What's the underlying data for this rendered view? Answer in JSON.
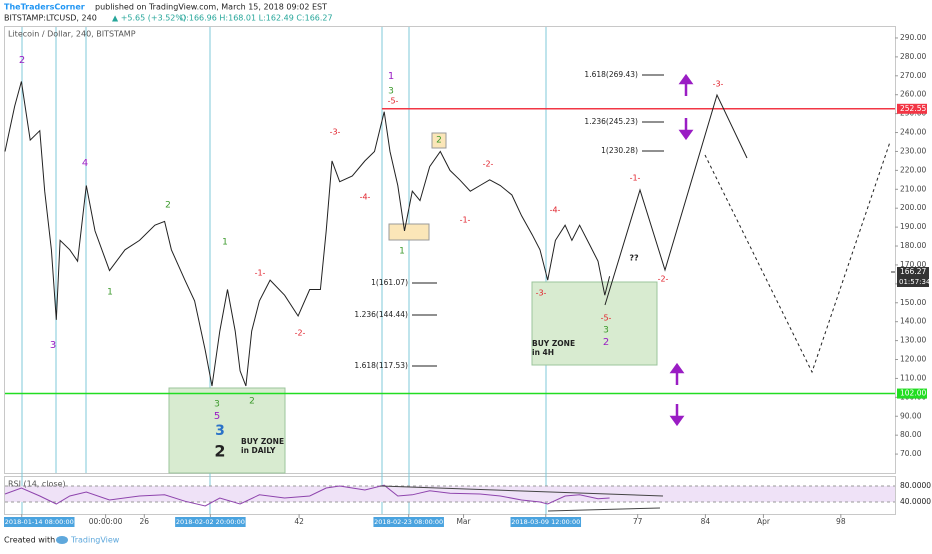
{
  "header": {
    "publisher": "TheTradersCorner",
    "published": "published on TradingView.com, March 15, 2018 09:02 EST",
    "symbol": "BITSTAMP:LTCUSD, 240",
    "change": "▲ +5.65 (+3.52%)",
    "ohlc": "O:166.96 H:168.01 L:162.49 C:166.27"
  },
  "chart_data": [
    {
      "type": "line",
      "title": "Litecoin / Dollar, 240, BITSTAMP",
      "color": "#222222",
      "grid": false,
      "x": [
        11.6,
        12.6,
        13.3,
        14.2,
        15.2,
        15.7,
        16.4,
        16.9,
        17.3,
        18.3,
        19.1,
        20.0,
        20.9,
        22.4,
        24.0,
        25.5,
        27.1,
        28.1,
        28.8,
        30.2,
        31.2,
        32.3,
        33.0,
        33.8,
        34.6,
        35.4,
        35.9,
        36.5,
        37.1,
        37.9,
        39.0,
        40.5,
        41.9,
        43.1,
        44.2,
        44.8,
        45.4,
        46.2,
        47.5,
        48.8,
        49.8,
        50.8,
        51.4,
        52.2,
        52.9,
        53.7,
        54.5,
        55.5,
        56.6,
        57.6,
        58.6,
        59.7,
        60.7,
        61.7,
        62.8,
        64.0,
        65.0,
        66.1,
        66.9,
        67.7,
        68.5,
        69.5,
        70.2,
        71.0,
        72.1,
        72.9,
        73.6,
        74.1
      ],
      "values": [
        230,
        254,
        267,
        236,
        241,
        209,
        178,
        141,
        183,
        178,
        172,
        212,
        188,
        167,
        178,
        183,
        191,
        193,
        178,
        162,
        151,
        125,
        106,
        135,
        157,
        135,
        114,
        106,
        135,
        151,
        162,
        154,
        143,
        157,
        157,
        188,
        225,
        214,
        217,
        225,
        230,
        251,
        230,
        212,
        188,
        209,
        204,
        222,
        230,
        220,
        215,
        209,
        212,
        215,
        212,
        207,
        196,
        186,
        178,
        162,
        183,
        191,
        183,
        191,
        180,
        172,
        154,
        164
      ],
      "xlim": [
        11.6,
        103.6
      ],
      "xticks": [
        {
          "value": 13.33,
          "label": "2018-01-14 08:00:00"
        },
        {
          "value": 22,
          "label": "00:00:00"
        },
        26,
        {
          "value": 32.83,
          "label": "2018-02-02 20:00:00"
        },
        42,
        {
          "value": 53.33,
          "label": "2018-02-23 08:00:00"
        },
        {
          "value": 59,
          "label": "Mar"
        },
        {
          "value": 67.5,
          "label": "2018-03-09 12:00:00"
        },
        77,
        84,
        {
          "value": 90,
          "label": "Apr"
        },
        98
      ],
      "ylim": [
        60,
        295.8
      ],
      "yticks": [
        {
          "value": 70,
          "label": "70.00"
        },
        {
          "value": 80,
          "label": "80.00"
        },
        {
          "value": 90,
          "label": "90.00"
        },
        {
          "value": 100,
          "label": "100.00"
        },
        {
          "value": 110,
          "label": "110.00"
        },
        {
          "value": 120,
          "label": "120.00"
        },
        {
          "value": 130,
          "label": "130.00"
        },
        {
          "value": 140,
          "label": "140.00"
        },
        {
          "value": 150,
          "label": "150.00"
        },
        {
          "value": 160,
          "label": "160.00"
        },
        {
          "value": 170,
          "label": "170.00"
        },
        {
          "value": 180,
          "label": "180.00"
        },
        {
          "value": 190,
          "label": "190.00"
        },
        {
          "value": 200,
          "label": "200.00"
        },
        {
          "value": 210,
          "label": "210.00"
        },
        {
          "value": 220,
          "label": "220.00"
        },
        {
          "value": 230,
          "label": "230.00"
        },
        {
          "value": 240,
          "label": "240.00"
        },
        {
          "value": 250,
          "label": "250.00"
        },
        {
          "value": 260,
          "label": "260.00"
        },
        {
          "value": 270,
          "label": "270.00"
        },
        {
          "value": 280,
          "label": "280.00"
        },
        {
          "value": 290,
          "label": "290.00"
        }
      ],
      "levels": [
        {
          "value": 252.55,
          "label": "252.55",
          "color": "#f23645"
        },
        {
          "value": 102,
          "label": "102.00",
          "color": "#22dd22"
        }
      ],
      "last_price": {
        "value": 166.27,
        "label": "166.27"
      },
      "countdown": "01:57:34"
    },
    {
      "type": "line",
      "title": "RSI (14, close)",
      "color": "#8e44ad",
      "x": [
        11.6,
        13.3,
        15.2,
        16.9,
        18.3,
        20.0,
        22.4,
        25.5,
        28.1,
        30.2,
        32.3,
        33.8,
        35.9,
        37.9,
        40.5,
        43.1,
        44.8,
        46.2,
        48.8,
        50.8,
        52.2,
        53.7,
        55.5,
        57.6,
        60.7,
        62.8,
        65.0,
        66.9,
        67.7,
        69.5,
        71.0,
        72.9,
        74.1
      ],
      "values": [
        60,
        75,
        55,
        35,
        55,
        65,
        45,
        55,
        58,
        42,
        30,
        50,
        35,
        58,
        50,
        55,
        75,
        80,
        70,
        82,
        55,
        58,
        68,
        62,
        60,
        55,
        45,
        40,
        35,
        55,
        58,
        48,
        50
      ],
      "ylim": [
        10,
        102.5
      ],
      "yticks": [
        {
          "value": 80,
          "label": "80.0000"
        },
        {
          "value": 40,
          "label": "40.0000"
        }
      ]
    }
  ],
  "annotations": [
    "2",
    "4",
    "3",
    "1",
    "2",
    "1",
    "-1-",
    "3",
    "5",
    "3",
    "2",
    "2",
    "-2-",
    "-3-",
    "-4-",
    "1",
    "3",
    "-5-",
    "2",
    "1",
    "-1-",
    "-2-",
    "-4-",
    "-3-",
    "-5-",
    "3",
    "2",
    "-1-",
    "-2-",
    "-3-",
    "??",
    "BUY ZONE",
    "in DAILY",
    "BUY ZONE",
    "in 4H",
    "1.618(269.43)",
    "1.236(245.23)",
    "1(230.28)",
    "1(161.07)",
    "1.236(144.44)",
    "1.618(117.53)"
  ],
  "footer": {
    "created": "Created with",
    "brand": "TradingView"
  }
}
